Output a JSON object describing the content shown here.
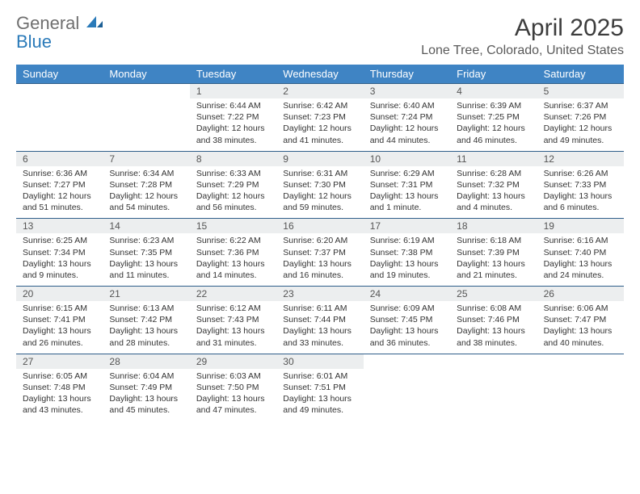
{
  "logo": {
    "part1": "General",
    "part2": "Blue"
  },
  "title": "April 2025",
  "location": "Lone Tree, Colorado, United States",
  "colors": {
    "header_bg": "#3f84c4",
    "header_text": "#ffffff",
    "daynum_bg": "#eceeef",
    "border": "#2f5e8a",
    "logo_gray": "#6f6f6f",
    "logo_blue": "#2a7ab9",
    "body_text": "#333333"
  },
  "day_names": [
    "Sunday",
    "Monday",
    "Tuesday",
    "Wednesday",
    "Thursday",
    "Friday",
    "Saturday"
  ],
  "weeks": [
    [
      {
        "n": "",
        "sr": "",
        "ss": "",
        "dl": ""
      },
      {
        "n": "",
        "sr": "",
        "ss": "",
        "dl": ""
      },
      {
        "n": "1",
        "sr": "Sunrise: 6:44 AM",
        "ss": "Sunset: 7:22 PM",
        "dl": "Daylight: 12 hours and 38 minutes."
      },
      {
        "n": "2",
        "sr": "Sunrise: 6:42 AM",
        "ss": "Sunset: 7:23 PM",
        "dl": "Daylight: 12 hours and 41 minutes."
      },
      {
        "n": "3",
        "sr": "Sunrise: 6:40 AM",
        "ss": "Sunset: 7:24 PM",
        "dl": "Daylight: 12 hours and 44 minutes."
      },
      {
        "n": "4",
        "sr": "Sunrise: 6:39 AM",
        "ss": "Sunset: 7:25 PM",
        "dl": "Daylight: 12 hours and 46 minutes."
      },
      {
        "n": "5",
        "sr": "Sunrise: 6:37 AM",
        "ss": "Sunset: 7:26 PM",
        "dl": "Daylight: 12 hours and 49 minutes."
      }
    ],
    [
      {
        "n": "6",
        "sr": "Sunrise: 6:36 AM",
        "ss": "Sunset: 7:27 PM",
        "dl": "Daylight: 12 hours and 51 minutes."
      },
      {
        "n": "7",
        "sr": "Sunrise: 6:34 AM",
        "ss": "Sunset: 7:28 PM",
        "dl": "Daylight: 12 hours and 54 minutes."
      },
      {
        "n": "8",
        "sr": "Sunrise: 6:33 AM",
        "ss": "Sunset: 7:29 PM",
        "dl": "Daylight: 12 hours and 56 minutes."
      },
      {
        "n": "9",
        "sr": "Sunrise: 6:31 AM",
        "ss": "Sunset: 7:30 PM",
        "dl": "Daylight: 12 hours and 59 minutes."
      },
      {
        "n": "10",
        "sr": "Sunrise: 6:29 AM",
        "ss": "Sunset: 7:31 PM",
        "dl": "Daylight: 13 hours and 1 minute."
      },
      {
        "n": "11",
        "sr": "Sunrise: 6:28 AM",
        "ss": "Sunset: 7:32 PM",
        "dl": "Daylight: 13 hours and 4 minutes."
      },
      {
        "n": "12",
        "sr": "Sunrise: 6:26 AM",
        "ss": "Sunset: 7:33 PM",
        "dl": "Daylight: 13 hours and 6 minutes."
      }
    ],
    [
      {
        "n": "13",
        "sr": "Sunrise: 6:25 AM",
        "ss": "Sunset: 7:34 PM",
        "dl": "Daylight: 13 hours and 9 minutes."
      },
      {
        "n": "14",
        "sr": "Sunrise: 6:23 AM",
        "ss": "Sunset: 7:35 PM",
        "dl": "Daylight: 13 hours and 11 minutes."
      },
      {
        "n": "15",
        "sr": "Sunrise: 6:22 AM",
        "ss": "Sunset: 7:36 PM",
        "dl": "Daylight: 13 hours and 14 minutes."
      },
      {
        "n": "16",
        "sr": "Sunrise: 6:20 AM",
        "ss": "Sunset: 7:37 PM",
        "dl": "Daylight: 13 hours and 16 minutes."
      },
      {
        "n": "17",
        "sr": "Sunrise: 6:19 AM",
        "ss": "Sunset: 7:38 PM",
        "dl": "Daylight: 13 hours and 19 minutes."
      },
      {
        "n": "18",
        "sr": "Sunrise: 6:18 AM",
        "ss": "Sunset: 7:39 PM",
        "dl": "Daylight: 13 hours and 21 minutes."
      },
      {
        "n": "19",
        "sr": "Sunrise: 6:16 AM",
        "ss": "Sunset: 7:40 PM",
        "dl": "Daylight: 13 hours and 24 minutes."
      }
    ],
    [
      {
        "n": "20",
        "sr": "Sunrise: 6:15 AM",
        "ss": "Sunset: 7:41 PM",
        "dl": "Daylight: 13 hours and 26 minutes."
      },
      {
        "n": "21",
        "sr": "Sunrise: 6:13 AM",
        "ss": "Sunset: 7:42 PM",
        "dl": "Daylight: 13 hours and 28 minutes."
      },
      {
        "n": "22",
        "sr": "Sunrise: 6:12 AM",
        "ss": "Sunset: 7:43 PM",
        "dl": "Daylight: 13 hours and 31 minutes."
      },
      {
        "n": "23",
        "sr": "Sunrise: 6:11 AM",
        "ss": "Sunset: 7:44 PM",
        "dl": "Daylight: 13 hours and 33 minutes."
      },
      {
        "n": "24",
        "sr": "Sunrise: 6:09 AM",
        "ss": "Sunset: 7:45 PM",
        "dl": "Daylight: 13 hours and 36 minutes."
      },
      {
        "n": "25",
        "sr": "Sunrise: 6:08 AM",
        "ss": "Sunset: 7:46 PM",
        "dl": "Daylight: 13 hours and 38 minutes."
      },
      {
        "n": "26",
        "sr": "Sunrise: 6:06 AM",
        "ss": "Sunset: 7:47 PM",
        "dl": "Daylight: 13 hours and 40 minutes."
      }
    ],
    [
      {
        "n": "27",
        "sr": "Sunrise: 6:05 AM",
        "ss": "Sunset: 7:48 PM",
        "dl": "Daylight: 13 hours and 43 minutes."
      },
      {
        "n": "28",
        "sr": "Sunrise: 6:04 AM",
        "ss": "Sunset: 7:49 PM",
        "dl": "Daylight: 13 hours and 45 minutes."
      },
      {
        "n": "29",
        "sr": "Sunrise: 6:03 AM",
        "ss": "Sunset: 7:50 PM",
        "dl": "Daylight: 13 hours and 47 minutes."
      },
      {
        "n": "30",
        "sr": "Sunrise: 6:01 AM",
        "ss": "Sunset: 7:51 PM",
        "dl": "Daylight: 13 hours and 49 minutes."
      },
      {
        "n": "",
        "sr": "",
        "ss": "",
        "dl": ""
      },
      {
        "n": "",
        "sr": "",
        "ss": "",
        "dl": ""
      },
      {
        "n": "",
        "sr": "",
        "ss": "",
        "dl": ""
      }
    ]
  ]
}
